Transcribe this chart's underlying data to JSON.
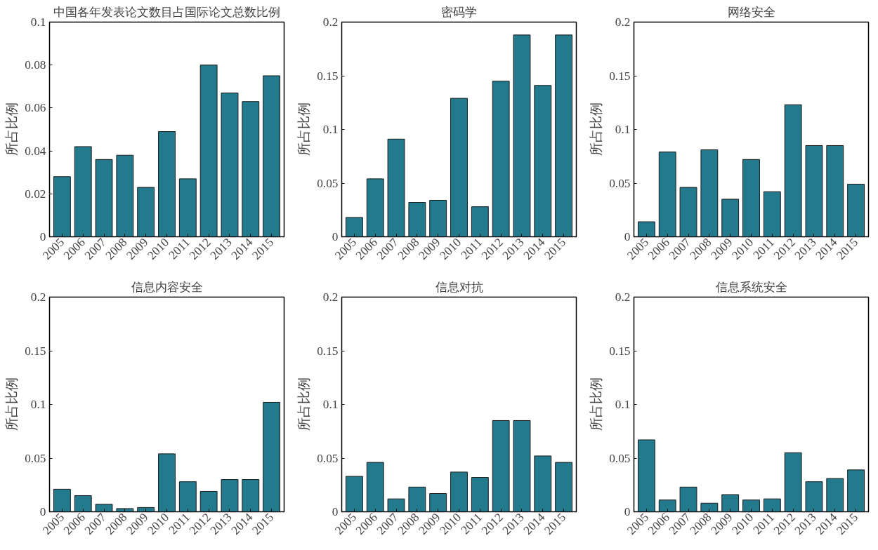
{
  "chart_data": [
    {
      "type": "bar",
      "title": "中国各年发表论文数目占国际论文总数比例",
      "ylabel": "所占比例",
      "categories": [
        "2005",
        "2006",
        "2007",
        "2008",
        "2009",
        "2010",
        "2011",
        "2012",
        "2013",
        "2014",
        "2015"
      ],
      "values": [
        0.028,
        0.042,
        0.036,
        0.038,
        0.023,
        0.049,
        0.027,
        0.08,
        0.067,
        0.063,
        0.075
      ],
      "color": "#237a8c",
      "ylim": [
        0,
        0.1
      ],
      "yticks": [
        0,
        0.02,
        0.04,
        0.06,
        0.08,
        0.1
      ],
      "grid": false
    },
    {
      "type": "bar",
      "title": "密码学",
      "ylabel": "所占比例",
      "categories": [
        "2005",
        "2006",
        "2007",
        "2008",
        "2009",
        "2010",
        "2011",
        "2012",
        "2013",
        "2014",
        "2015"
      ],
      "values": [
        0.018,
        0.054,
        0.091,
        0.032,
        0.034,
        0.129,
        0.028,
        0.145,
        0.188,
        0.141,
        0.188
      ],
      "color": "#237a8c",
      "ylim": [
        0,
        0.2
      ],
      "yticks": [
        0,
        0.05,
        0.1,
        0.15,
        0.2
      ],
      "grid": false
    },
    {
      "type": "bar",
      "title": "网络安全",
      "ylabel": "所占比例",
      "categories": [
        "2005",
        "2006",
        "2007",
        "2008",
        "2009",
        "2010",
        "2011",
        "2012",
        "2013",
        "2014",
        "2015"
      ],
      "values": [
        0.014,
        0.079,
        0.046,
        0.081,
        0.035,
        0.072,
        0.042,
        0.123,
        0.085,
        0.085,
        0.049
      ],
      "color": "#237a8c",
      "ylim": [
        0,
        0.2
      ],
      "yticks": [
        0,
        0.05,
        0.1,
        0.15,
        0.2
      ],
      "grid": false
    },
    {
      "type": "bar",
      "title": "信息内容安全",
      "ylabel": "所占比例",
      "categories": [
        "2005",
        "2006",
        "2007",
        "2008",
        "2009",
        "2010",
        "2011",
        "2012",
        "2013",
        "2014",
        "2015"
      ],
      "values": [
        0.021,
        0.015,
        0.007,
        0.003,
        0.004,
        0.054,
        0.028,
        0.019,
        0.03,
        0.03,
        0.102
      ],
      "color": "#237a8c",
      "ylim": [
        0,
        0.2
      ],
      "yticks": [
        0,
        0.05,
        0.1,
        0.15,
        0.2
      ],
      "grid": false
    },
    {
      "type": "bar",
      "title": "信息对抗",
      "ylabel": "所占比例",
      "categories": [
        "2005",
        "2006",
        "2007",
        "2008",
        "2009",
        "2010",
        "2011",
        "2012",
        "2013",
        "2014",
        "2015"
      ],
      "values": [
        0.033,
        0.046,
        0.012,
        0.023,
        0.017,
        0.037,
        0.032,
        0.085,
        0.085,
        0.052,
        0.046
      ],
      "color": "#237a8c",
      "ylim": [
        0,
        0.2
      ],
      "yticks": [
        0,
        0.05,
        0.1,
        0.15,
        0.2
      ],
      "grid": false
    },
    {
      "type": "bar",
      "title": "信息系统安全",
      "ylabel": "所占比例",
      "categories": [
        "2005",
        "2006",
        "2007",
        "2008",
        "2009",
        "2010",
        "2011",
        "2012",
        "2013",
        "2014",
        "2015"
      ],
      "values": [
        0.067,
        0.011,
        0.023,
        0.008,
        0.016,
        0.011,
        0.012,
        0.055,
        0.028,
        0.031,
        0.039
      ],
      "color": "#237a8c",
      "ylim": [
        0,
        0.2
      ],
      "yticks": [
        0,
        0.05,
        0.1,
        0.15,
        0.2
      ],
      "grid": false
    }
  ]
}
